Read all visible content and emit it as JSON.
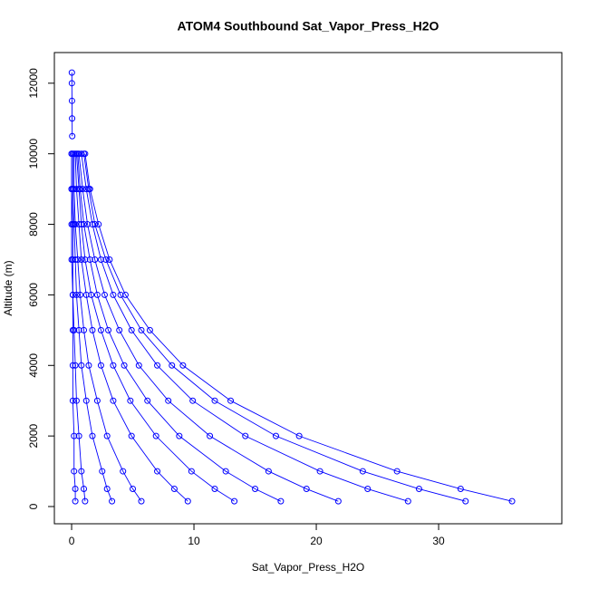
{
  "chart_data": {
    "type": "line",
    "title": "ATOM4 Southbound Sat_Vapor_Press_H2O",
    "x_label": "Sat_Vapor_Press_H2O",
    "y_label": "Altitude (m)",
    "color": "#0000ff",
    "xlim": [
      -1.41,
      40.07
    ],
    "ylim": [
      -488,
      12869
    ],
    "xticks": [
      0,
      10,
      20,
      30
    ],
    "yticks": [
      0,
      2000,
      4000,
      6000,
      8000,
      10000,
      12000
    ],
    "series": [
      {
        "x": [
          36.0,
          31.8,
          26.6,
          18.6,
          13.0,
          9.1,
          6.4,
          4.4,
          3.1,
          2.2,
          1.5,
          1.1
        ],
        "values": [
          150,
          500,
          1000,
          2000,
          3000,
          4000,
          5000,
          6000,
          7000,
          8000,
          9000,
          10000
        ]
      },
      {
        "x": [
          32.2,
          28.4,
          23.8,
          16.7,
          11.7,
          8.2,
          5.7,
          4.0,
          2.8,
          1.9,
          1.4,
          1.0
        ],
        "values": [
          150,
          500,
          1000,
          2000,
          3000,
          4000,
          5000,
          6000,
          7000,
          8000,
          9000,
          10000
        ]
      },
      {
        "x": [
          27.5,
          24.2,
          20.3,
          14.2,
          9.9,
          7.0,
          4.9,
          3.4,
          2.4,
          1.7,
          1.2,
          0.8
        ],
        "values": [
          150,
          500,
          1000,
          2000,
          3000,
          4000,
          5000,
          6000,
          7000,
          8000,
          9000,
          10000
        ]
      },
      {
        "x": [
          21.8,
          19.2,
          16.1,
          11.3,
          7.9,
          5.5,
          3.9,
          2.7,
          1.9,
          1.3,
          0.9,
          0.6
        ],
        "values": [
          150,
          500,
          1000,
          2000,
          3000,
          4000,
          5000,
          6000,
          7000,
          8000,
          9000,
          10000
        ]
      },
      {
        "x": [
          17.1,
          15.0,
          12.6,
          8.8,
          6.2,
          4.3,
          3.0,
          2.1,
          1.5,
          1.0,
          0.7,
          0.5
        ],
        "values": [
          150,
          500,
          1000,
          2000,
          3000,
          4000,
          5000,
          6000,
          7000,
          8000,
          9000,
          10000
        ]
      },
      {
        "x": [
          13.3,
          11.7,
          9.8,
          6.9,
          4.8,
          3.4,
          2.4,
          1.6,
          1.1,
          0.8,
          0.6,
          0.4
        ],
        "values": [
          150,
          500,
          1000,
          2000,
          3000,
          4000,
          5000,
          6000,
          7000,
          8000,
          9000,
          10000
        ]
      },
      {
        "x": [
          9.5,
          8.4,
          7.0,
          4.9,
          3.4,
          2.4,
          1.7,
          1.2,
          0.8,
          0.6,
          0.4,
          0.3
        ],
        "values": [
          150,
          500,
          1000,
          2000,
          3000,
          4000,
          5000,
          6000,
          7000,
          8000,
          9000,
          10000
        ]
      },
      {
        "x": [
          5.7,
          5.0,
          4.2,
          2.9,
          2.1,
          1.4,
          1.0,
          0.7,
          0.5,
          0.3,
          0.2,
          0.2
        ],
        "values": [
          150,
          500,
          1000,
          2000,
          3000,
          4000,
          5000,
          6000,
          7000,
          8000,
          9000,
          10000
        ]
      },
      {
        "x": [
          3.3,
          2.9,
          2.5,
          1.7,
          1.2,
          0.8,
          0.6,
          0.4,
          0.3,
          0.2,
          0.1,
          0.1
        ],
        "values": [
          150,
          500,
          1000,
          2000,
          3000,
          4000,
          5000,
          6000,
          7000,
          8000,
          9000,
          10000
        ]
      },
      {
        "x": [
          1.1,
          1.0,
          0.8,
          0.6,
          0.4,
          0.3,
          0.2,
          0.1,
          0.1,
          0.1,
          0.0,
          0.0
        ],
        "values": [
          150,
          500,
          1000,
          2000,
          3000,
          4000,
          5000,
          6000,
          7000,
          8000,
          9000,
          10000
        ]
      },
      {
        "x": [
          0.3,
          0.3,
          0.2,
          0.2,
          0.1,
          0.1,
          0.1,
          0.1,
          0.0,
          0.0,
          0.0,
          0.0
        ],
        "values": [
          150,
          500,
          1000,
          2000,
          3000,
          4000,
          5000,
          6000,
          7000,
          8000,
          9000,
          10000
        ]
      },
      {
        "x": [
          0.05,
          0.04,
          0.03,
          0.02,
          0.02
        ],
        "values": [
          10500,
          11000,
          11500,
          12000,
          12300
        ]
      }
    ]
  }
}
